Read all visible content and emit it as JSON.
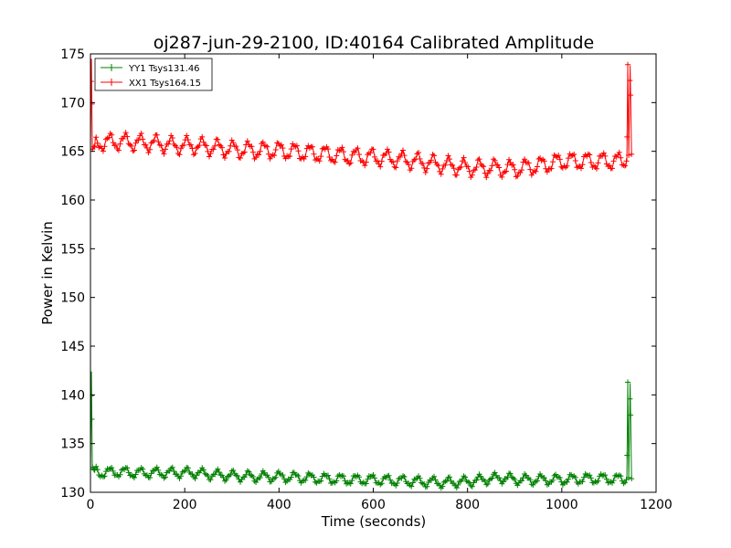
{
  "chart_data": {
    "type": "line",
    "title": "oj287-jun-29-2100, ID:40164 Calibrated Amplitude",
    "xlabel": "Time (seconds)",
    "ylabel": "Power in Kelvin",
    "xlim": [
      0,
      1200
    ],
    "ylim": [
      130,
      175
    ],
    "xticks": [
      0,
      200,
      400,
      600,
      800,
      1000,
      1200
    ],
    "yticks": [
      130,
      135,
      140,
      145,
      150,
      155,
      160,
      165,
      170,
      175
    ],
    "grid": false,
    "legend_position": "top-left",
    "series": [
      {
        "name": "YY1 Tsys131.46",
        "color": "#008000",
        "marker": "+",
        "x": [
          0,
          2,
          4,
          8,
          20,
          60,
          100,
          140,
          180,
          220,
          260,
          300,
          350,
          400,
          450,
          500,
          550,
          600,
          650,
          700,
          750,
          800,
          850,
          880,
          900,
          950,
          1000,
          1050,
          1100,
          1138,
          1140,
          1142,
          1145,
          1148
        ],
        "values": [
          132.4,
          142.4,
          132.6,
          132.3,
          132.0,
          132.1,
          132.0,
          132.0,
          132.0,
          132.0,
          131.8,
          131.7,
          131.6,
          131.6,
          131.5,
          131.4,
          131.3,
          131.3,
          131.2,
          131.1,
          131.0,
          131.1,
          131.4,
          131.5,
          131.3,
          131.3,
          131.3,
          131.4,
          131.4,
          131.3,
          141.3,
          131.5,
          141.2,
          131.4
        ],
        "amplitude": 0.45
      },
      {
        "name": "XX1 Tsys164.15",
        "color": "#ff0000",
        "marker": "+",
        "x": [
          0,
          2,
          4,
          8,
          20,
          60,
          100,
          140,
          180,
          220,
          260,
          300,
          350,
          400,
          450,
          500,
          550,
          600,
          650,
          700,
          750,
          800,
          850,
          900,
          950,
          1000,
          1050,
          1100,
          1138,
          1140,
          1142,
          1145,
          1148
        ],
        "values": [
          165.2,
          174.5,
          165.2,
          165.5,
          165.9,
          166.0,
          165.9,
          165.8,
          165.6,
          165.6,
          165.4,
          165.2,
          165.1,
          165.1,
          164.9,
          164.7,
          164.5,
          164.4,
          164.2,
          163.9,
          163.6,
          163.3,
          163.3,
          163.2,
          163.5,
          164.0,
          164.0,
          164.0,
          164.0,
          173.9,
          164.6,
          173.8,
          164.7
        ],
        "amplitude": 0.75
      }
    ]
  }
}
